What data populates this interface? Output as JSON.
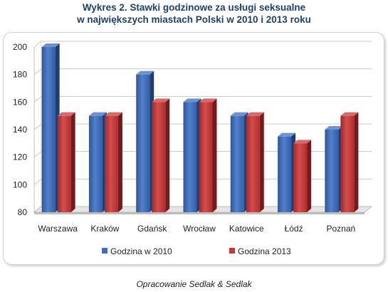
{
  "title_line1": "Wykres 2. Stawki godzinowe za usługi seksualne",
  "title_line2": "w największych miastach Polski w 2010 i 2013  roku",
  "source_note": "Opracowanie Sedlak & Sedlak",
  "colors": {
    "series_2010": "#3a6fc4",
    "series_2013": "#cf3535"
  },
  "chart_data": {
    "type": "bar",
    "title": "Wykres 2. Stawki godzinowe za usługi seksualne w największych miastach Polski w 2010 i 2013  roku",
    "categories": [
      "Warszawa",
      "Kraków",
      "Gdańsk",
      "Wrocław",
      "Katowice",
      "Łódź",
      "Poznań"
    ],
    "series": [
      {
        "name": "Godzina w 2010",
        "values": [
          200,
          150,
          180,
          160,
          150,
          135,
          140
        ]
      },
      {
        "name": "Godzina 2013",
        "values": [
          150,
          150,
          160,
          160,
          150,
          130,
          150
        ]
      }
    ],
    "yticks": [
      80,
      100,
      120,
      140,
      160,
      180,
      200
    ],
    "ylim": [
      80,
      200
    ],
    "xlabel": "",
    "ylabel": "",
    "grid": true,
    "legend": "bottom",
    "style": "3d-clustered-column"
  }
}
